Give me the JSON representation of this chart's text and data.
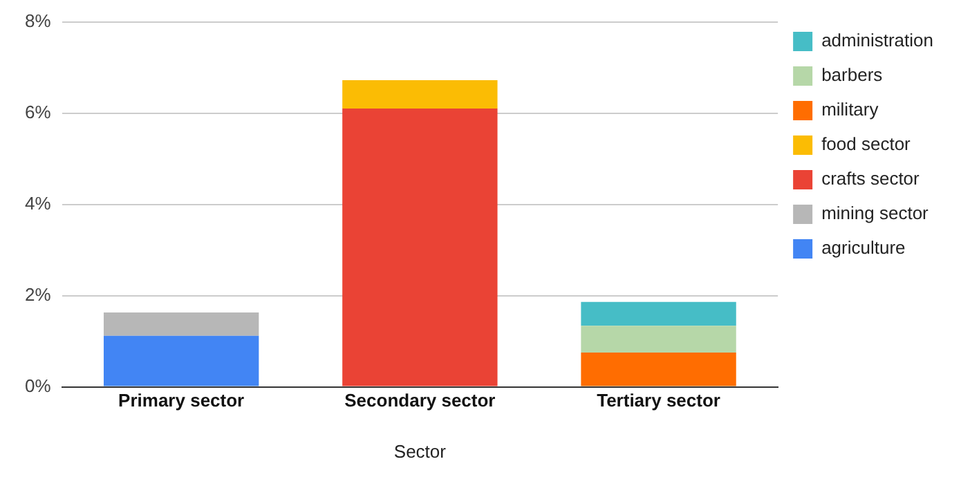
{
  "chart_data": {
    "type": "bar",
    "stacked": true,
    "xlabel": "Sector",
    "categories": [
      "Primary sector",
      "Secondary sector",
      "Tertiary sector"
    ],
    "series": [
      {
        "name": "agriculture",
        "color": "#4285f4",
        "values": [
          1.12,
          null,
          null
        ]
      },
      {
        "name": "mining sector",
        "color": "#b7b7b7",
        "values": [
          0.51,
          null,
          null
        ]
      },
      {
        "name": "crafts sector",
        "color": "#ea4335",
        "values": [
          null,
          6.1,
          null
        ]
      },
      {
        "name": "food sector",
        "color": "#fbbc04",
        "values": [
          null,
          0.62,
          null
        ]
      },
      {
        "name": "military",
        "color": "#ff6d01",
        "values": [
          null,
          null,
          0.75
        ]
      },
      {
        "name": "barbers",
        "color": "#b6d7a8",
        "values": [
          null,
          null,
          0.59
        ]
      },
      {
        "name": "administration",
        "color": "#46bdc6",
        "values": [
          null,
          null,
          0.52
        ]
      }
    ],
    "ylim": [
      0,
      8
    ],
    "yticks": [
      {
        "value": 0,
        "label": "0%"
      },
      {
        "value": 2,
        "label": "2%"
      },
      {
        "value": 4,
        "label": "4%"
      },
      {
        "value": 6,
        "label": "6%"
      },
      {
        "value": 8,
        "label": "8%"
      }
    ],
    "grid": "y",
    "legend": "top right"
  }
}
